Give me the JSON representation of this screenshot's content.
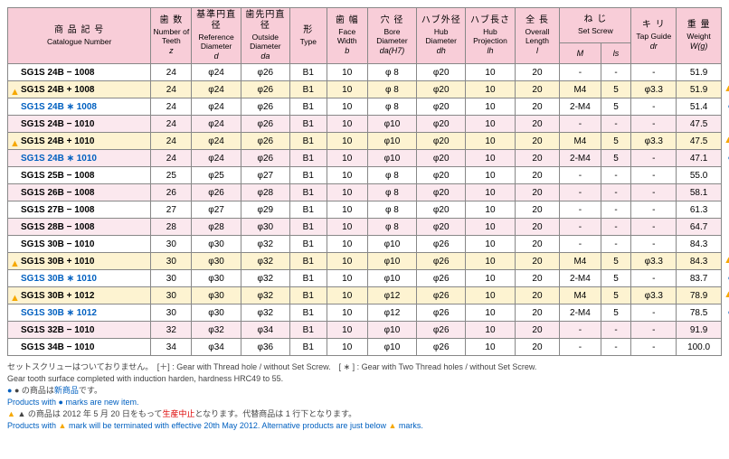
{
  "headers": {
    "cat": {
      "jp": "商 品 記 号",
      "en": "Catalogue Number"
    },
    "teeth": {
      "jp": "歯 数",
      "en": "Number of Teeth",
      "sym": "z"
    },
    "refd": {
      "jp": "基準円直径",
      "en": "Reference Diameter",
      "sym": "d"
    },
    "outd": {
      "jp": "歯先円直径",
      "en": "Outside Diameter",
      "sym": "da"
    },
    "type": {
      "jp": "形",
      "en": "Type"
    },
    "face": {
      "jp": "歯 幅",
      "en": "Face Width",
      "sym": "b"
    },
    "bore": {
      "jp": "穴 径",
      "en": "Bore Diameter",
      "sym": "da(H7)"
    },
    "hubd": {
      "jp": "ハブ外径",
      "en": "Hub Diameter",
      "sym": "dh"
    },
    "hubp": {
      "jp": "ハブ長さ",
      "en": "Hub Projection",
      "sym": "lh"
    },
    "len": {
      "jp": "全 長",
      "en": "Overall Length",
      "sym": "l"
    },
    "screw": {
      "jp": "ね じ",
      "en": "Set Screw"
    },
    "screwM": "M",
    "screwL": "ls",
    "tap": {
      "jp": "キ リ",
      "en": "Tap Guide",
      "sym": "dr"
    },
    "wt": {
      "jp": "重 量",
      "en": "Weight",
      "sym": "W(g)"
    }
  },
  "rows": [
    {
      "cat": "SG1S 24B − 1008",
      "z": "24",
      "d": "φ24",
      "da": "φ26",
      "t": "B1",
      "b": "10",
      "bd": "φ 8",
      "hd": "φ20",
      "hp": "10",
      "l": "20",
      "m": "-",
      "ls": "-",
      "tg": "-",
      "w": "51.9",
      "cls": "",
      "mk": ""
    },
    {
      "cat": "SG1S 24B + 1008",
      "z": "24",
      "d": "φ24",
      "da": "φ26",
      "t": "B1",
      "b": "10",
      "bd": "φ 8",
      "hd": "φ20",
      "hp": "10",
      "l": "20",
      "m": "M4",
      "ls": "5",
      "tg": "φ3.3",
      "w": "51.9",
      "cls": "hl",
      "mk": "tri"
    },
    {
      "cat": "SG1S 24B ∗ 1008",
      "z": "24",
      "d": "φ24",
      "da": "φ26",
      "t": "B1",
      "b": "10",
      "bd": "φ 8",
      "hd": "φ20",
      "hp": "10",
      "l": "20",
      "m": "2-M4",
      "ls": "5",
      "tg": "-",
      "w": "51.4",
      "cls": "blue",
      "mk": "dot"
    },
    {
      "cat": "SG1S 24B − 1010",
      "z": "24",
      "d": "φ24",
      "da": "φ26",
      "t": "B1",
      "b": "10",
      "bd": "φ10",
      "hd": "φ20",
      "hp": "10",
      "l": "20",
      "m": "-",
      "ls": "-",
      "tg": "-",
      "w": "47.5",
      "cls": "alt",
      "mk": ""
    },
    {
      "cat": "SG1S 24B + 1010",
      "z": "24",
      "d": "φ24",
      "da": "φ26",
      "t": "B1",
      "b": "10",
      "bd": "φ10",
      "hd": "φ20",
      "hp": "10",
      "l": "20",
      "m": "M4",
      "ls": "5",
      "tg": "φ3.3",
      "w": "47.5",
      "cls": "hl",
      "mk": "tri"
    },
    {
      "cat": "SG1S 24B ∗ 1010",
      "z": "24",
      "d": "φ24",
      "da": "φ26",
      "t": "B1",
      "b": "10",
      "bd": "φ10",
      "hd": "φ20",
      "hp": "10",
      "l": "20",
      "m": "2-M4",
      "ls": "5",
      "tg": "-",
      "w": "47.1",
      "cls": "alt blue",
      "mk": "dot"
    },
    {
      "cat": "SG1S 25B − 1008",
      "z": "25",
      "d": "φ25",
      "da": "φ27",
      "t": "B1",
      "b": "10",
      "bd": "φ 8",
      "hd": "φ20",
      "hp": "10",
      "l": "20",
      "m": "-",
      "ls": "-",
      "tg": "-",
      "w": "55.0",
      "cls": "",
      "mk": ""
    },
    {
      "cat": "SG1S 26B − 1008",
      "z": "26",
      "d": "φ26",
      "da": "φ28",
      "t": "B1",
      "b": "10",
      "bd": "φ 8",
      "hd": "φ20",
      "hp": "10",
      "l": "20",
      "m": "-",
      "ls": "-",
      "tg": "-",
      "w": "58.1",
      "cls": "alt",
      "mk": ""
    },
    {
      "cat": "SG1S 27B − 1008",
      "z": "27",
      "d": "φ27",
      "da": "φ29",
      "t": "B1",
      "b": "10",
      "bd": "φ 8",
      "hd": "φ20",
      "hp": "10",
      "l": "20",
      "m": "-",
      "ls": "-",
      "tg": "-",
      "w": "61.3",
      "cls": "",
      "mk": ""
    },
    {
      "cat": "SG1S 28B − 1008",
      "z": "28",
      "d": "φ28",
      "da": "φ30",
      "t": "B1",
      "b": "10",
      "bd": "φ 8",
      "hd": "φ20",
      "hp": "10",
      "l": "20",
      "m": "-",
      "ls": "-",
      "tg": "-",
      "w": "64.7",
      "cls": "alt",
      "mk": ""
    },
    {
      "cat": "SG1S 30B − 1010",
      "z": "30",
      "d": "φ30",
      "da": "φ32",
      "t": "B1",
      "b": "10",
      "bd": "φ10",
      "hd": "φ26",
      "hp": "10",
      "l": "20",
      "m": "-",
      "ls": "-",
      "tg": "-",
      "w": "84.3",
      "cls": "",
      "mk": ""
    },
    {
      "cat": "SG1S 30B + 1010",
      "z": "30",
      "d": "φ30",
      "da": "φ32",
      "t": "B1",
      "b": "10",
      "bd": "φ10",
      "hd": "φ26",
      "hp": "10",
      "l": "20",
      "m": "M4",
      "ls": "5",
      "tg": "φ3.3",
      "w": "84.3",
      "cls": "hl",
      "mk": "tri"
    },
    {
      "cat": "SG1S 30B ∗ 1010",
      "z": "30",
      "d": "φ30",
      "da": "φ32",
      "t": "B1",
      "b": "10",
      "bd": "φ10",
      "hd": "φ26",
      "hp": "10",
      "l": "20",
      "m": "2-M4",
      "ls": "5",
      "tg": "-",
      "w": "83.7",
      "cls": "blue",
      "mk": "dot"
    },
    {
      "cat": "SG1S 30B + 1012",
      "z": "30",
      "d": "φ30",
      "da": "φ32",
      "t": "B1",
      "b": "10",
      "bd": "φ12",
      "hd": "φ26",
      "hp": "10",
      "l": "20",
      "m": "M4",
      "ls": "5",
      "tg": "φ3.3",
      "w": "78.9",
      "cls": "hl",
      "mk": "tri"
    },
    {
      "cat": "SG1S 30B ∗ 1012",
      "z": "30",
      "d": "φ30",
      "da": "φ32",
      "t": "B1",
      "b": "10",
      "bd": "φ12",
      "hd": "φ26",
      "hp": "10",
      "l": "20",
      "m": "2-M4",
      "ls": "5",
      "tg": "-",
      "w": "78.5",
      "cls": "blue",
      "mk": "dot"
    },
    {
      "cat": "SG1S 32B − 1010",
      "z": "32",
      "d": "φ32",
      "da": "φ34",
      "t": "B1",
      "b": "10",
      "bd": "φ10",
      "hd": "φ26",
      "hp": "10",
      "l": "20",
      "m": "-",
      "ls": "-",
      "tg": "-",
      "w": "91.9",
      "cls": "alt",
      "mk": ""
    },
    {
      "cat": "SG1S 34B − 1010",
      "z": "34",
      "d": "φ34",
      "da": "φ36",
      "t": "B1",
      "b": "10",
      "bd": "φ10",
      "hd": "φ26",
      "hp": "10",
      "l": "20",
      "m": "-",
      "ls": "-",
      "tg": "-",
      "w": "100.0",
      "cls": "",
      "mk": ""
    }
  ],
  "notes": {
    "n1a": "セットスクリューはついておりません。　[＋] : Gear with Thread hole / without Set Screw.　[ ∗ ] : Gear with Two Thread holes / without Set Screw.",
    "n2": "Gear tooth surface completed with induction harden, hardness HRC49 to 55.",
    "n3a": "● の商品は",
    "n3b": "新商品",
    "n3c": "です。",
    "n4": "Products with ● marks are new item.",
    "n5a": "▲ の商品は 2012 年 5 月 20 日をもって",
    "n5b": "生産中止",
    "n5c": "となります。代替商品は 1 行下となります。",
    "n6": "Products with ▲ mark will be terminated with effective 20th May 2012. Alternative products are just below ▲ marks."
  },
  "colwidths": [
    "140",
    "40",
    "48",
    "48",
    "36",
    "40",
    "48",
    "48",
    "48",
    "44",
    "40",
    "30",
    "44",
    "44"
  ]
}
